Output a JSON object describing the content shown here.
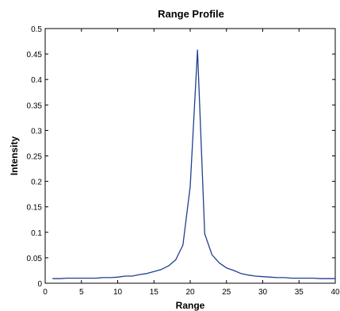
{
  "chart_data": {
    "type": "line",
    "title": "Range Profile",
    "xlabel": "Range",
    "ylabel": "Intensity",
    "xlim": [
      0,
      40
    ],
    "ylim": [
      0,
      0.5
    ],
    "grid": false,
    "x_ticks": [
      0,
      5,
      10,
      15,
      20,
      25,
      30,
      35,
      40
    ],
    "y_ticks": [
      0,
      0.05,
      0.1,
      0.15,
      0.2,
      0.25,
      0.3,
      0.35,
      0.4,
      0.45,
      0.5
    ],
    "x_tick_labels": [
      "0",
      "5",
      "10",
      "15",
      "20",
      "25",
      "30",
      "35",
      "40"
    ],
    "y_tick_labels": [
      "0",
      "0.05",
      "0.1",
      "0.15",
      "0.2",
      "0.25",
      "0.3",
      "0.35",
      "0.4",
      "0.45",
      "0.5"
    ],
    "series": [
      {
        "color": "#1f3f8f",
        "x": [
          1,
          2,
          3,
          4,
          5,
          6,
          7,
          8,
          9,
          10,
          11,
          12,
          13,
          14,
          15,
          16,
          17,
          18,
          19,
          20,
          21,
          22,
          23,
          24,
          25,
          26,
          27,
          28,
          29,
          30,
          31,
          32,
          33,
          34,
          35,
          36,
          37,
          38,
          39,
          40
        ],
        "y": [
          0.009,
          0.009,
          0.01,
          0.01,
          0.01,
          0.01,
          0.01,
          0.011,
          0.011,
          0.012,
          0.014,
          0.014,
          0.017,
          0.019,
          0.023,
          0.027,
          0.034,
          0.046,
          0.075,
          0.19,
          0.458,
          0.097,
          0.056,
          0.04,
          0.03,
          0.025,
          0.019,
          0.016,
          0.014,
          0.013,
          0.012,
          0.011,
          0.011,
          0.01,
          0.01,
          0.01,
          0.01,
          0.009,
          0.009,
          0.009
        ]
      }
    ]
  }
}
